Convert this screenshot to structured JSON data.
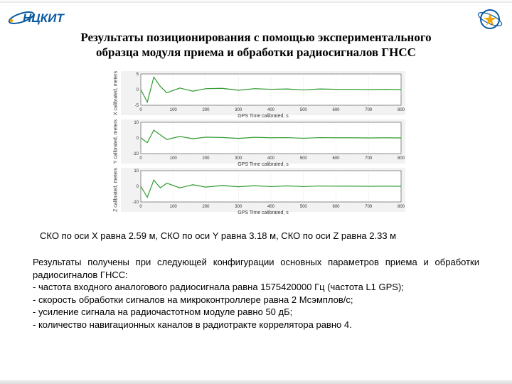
{
  "title_line1": "Результаты позиционирования с помощью экспериментального",
  "title_line2": "образца модуля приема и обработки радиосигналов ГНСС",
  "charts": {
    "xlabel": "GPS Time calibrated, s",
    "xlim": [
      0,
      800
    ],
    "xtick_step": 100,
    "line_color": "#2e9b2e",
    "axis_color": "#666666",
    "grid_color": "#bfbfbf",
    "panel_bg": "#ffffff",
    "figure_bg": "#f2f2f2",
    "panels": [
      {
        "ylabel": "X calibrated, meters",
        "ylim": [
          -5,
          5
        ],
        "ytick_step": 5,
        "series": [
          [
            0,
            0
          ],
          [
            20,
            -4
          ],
          [
            40,
            4
          ],
          [
            60,
            1
          ],
          [
            80,
            -1
          ],
          [
            120,
            0.5
          ],
          [
            160,
            -0.5
          ],
          [
            200,
            0.3
          ],
          [
            250,
            0.4
          ],
          [
            300,
            -0.2
          ],
          [
            350,
            0.3
          ],
          [
            400,
            0.1
          ],
          [
            450,
            0.2
          ],
          [
            500,
            -0.1
          ],
          [
            550,
            0.2
          ],
          [
            600,
            0.1
          ],
          [
            650,
            0.1
          ],
          [
            700,
            0.0
          ],
          [
            750,
            0.1
          ],
          [
            800,
            0.0
          ]
        ]
      },
      {
        "ylabel": "Y calibrated, meters",
        "ylim": [
          -10,
          10
        ],
        "ytick_step": 10,
        "series": [
          [
            0,
            0
          ],
          [
            20,
            -3
          ],
          [
            40,
            5
          ],
          [
            60,
            2
          ],
          [
            80,
            -1
          ],
          [
            120,
            1
          ],
          [
            160,
            -0.5
          ],
          [
            200,
            0.5
          ],
          [
            250,
            0.3
          ],
          [
            300,
            -0.3
          ],
          [
            350,
            0.4
          ],
          [
            400,
            0.1
          ],
          [
            450,
            0.2
          ],
          [
            500,
            -0.2
          ],
          [
            550,
            0.2
          ],
          [
            600,
            0.1
          ],
          [
            650,
            0.1
          ],
          [
            700,
            0.0
          ],
          [
            750,
            0.1
          ],
          [
            800,
            0.0
          ]
        ]
      },
      {
        "ylabel": "Z calibrated, meters",
        "ylim": [
          -10,
          10
        ],
        "ytick_step": 10,
        "series": [
          [
            0,
            0
          ],
          [
            20,
            -7
          ],
          [
            40,
            4
          ],
          [
            60,
            -1
          ],
          [
            80,
            2
          ],
          [
            120,
            -1
          ],
          [
            160,
            1
          ],
          [
            200,
            -0.5
          ],
          [
            250,
            0.5
          ],
          [
            300,
            -0.3
          ],
          [
            350,
            0.4
          ],
          [
            400,
            -0.2
          ],
          [
            450,
            0.3
          ],
          [
            500,
            -0.2
          ],
          [
            550,
            0.2
          ],
          [
            600,
            0.1
          ],
          [
            650,
            0.1
          ],
          [
            700,
            0.0
          ],
          [
            750,
            0.1
          ],
          [
            800,
            0.0
          ]
        ]
      }
    ]
  },
  "sko_line": "СКО по оси X равна 2.59 м, СКО по оси Y равна 3.18 м, СКО по оси Z равна 2.33 м",
  "body_intro": "Результаты получены при следующей конфигурации основных параметров приема и обработки радиосигналов ГНСС:",
  "bullets": [
    "частота входного аналогового радиосигнала равна 1575420000 Гц (частота L1 GPS);",
    "скорость обработки сигналов на микроконтроллере равна 2 Мсэмплов/с;",
    "усиление сигнала на радиочастотном модуле равно 50 дБ;",
    "количество навигационных каналов в радиотракте коррелятора равно 4."
  ],
  "logo_left": {
    "text": "НЦКИТ",
    "text_color": "#0b5aa0",
    "accent": "#f6a500"
  },
  "logo_right": {
    "ring": "#0b5aa0",
    "star": "#f6a500"
  }
}
